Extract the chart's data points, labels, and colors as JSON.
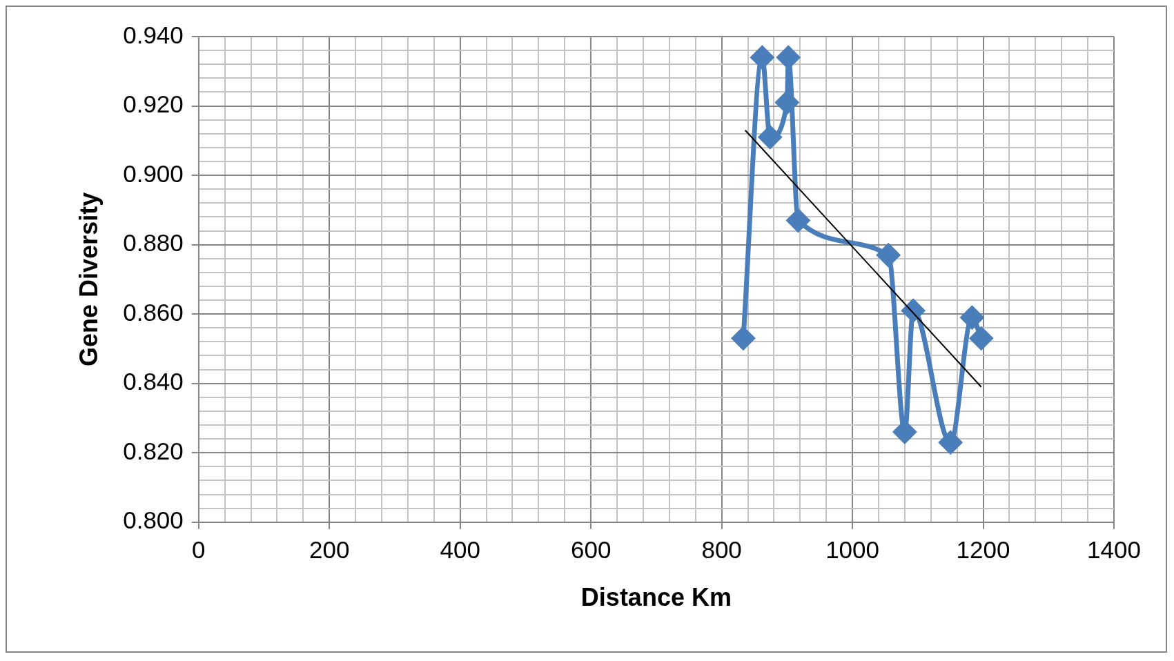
{
  "chart_data": {
    "type": "line",
    "xlabel": "Distance Km",
    "ylabel": "Gene Diversity",
    "xlim": [
      0,
      1400
    ],
    "ylim": [
      0.8,
      0.94
    ],
    "xticks": [
      0,
      {
        "value": 40,
        "label": null
      },
      {
        "value": 80,
        "label": null
      },
      {
        "value": 120,
        "label": null
      },
      {
        "value": 160,
        "label": null
      },
      200,
      {
        "value": 240,
        "label": null
      },
      {
        "value": 280,
        "label": null
      },
      {
        "value": 320,
        "label": null
      },
      {
        "value": 360,
        "label": null
      },
      400,
      {
        "value": 440,
        "label": null
      },
      {
        "value": 480,
        "label": null
      },
      {
        "value": 520,
        "label": null
      },
      {
        "value": 560,
        "label": null
      },
      600,
      {
        "value": 640,
        "label": null
      },
      {
        "value": 680,
        "label": null
      },
      {
        "value": 720,
        "label": null
      },
      {
        "value": 760,
        "label": null
      },
      800,
      {
        "value": 840,
        "label": null
      },
      {
        "value": 880,
        "label": null
      },
      {
        "value": 920,
        "label": null
      },
      {
        "value": 960,
        "label": null
      },
      1000,
      {
        "value": 1040,
        "label": null
      },
      {
        "value": 1080,
        "label": null
      },
      {
        "value": 1120,
        "label": null
      },
      {
        "value": 1160,
        "label": null
      },
      1200,
      {
        "value": 1240,
        "label": null
      },
      {
        "value": 1280,
        "label": null
      },
      {
        "value": 1320,
        "label": null
      },
      {
        "value": 1360,
        "label": null
      },
      1400
    ],
    "yticks": [
      {
        "value": 0.8,
        "label": "0.800"
      },
      {
        "value": 0.804,
        "label": null
      },
      {
        "value": 0.808,
        "label": null
      },
      {
        "value": 0.812,
        "label": null
      },
      {
        "value": 0.816,
        "label": null
      },
      {
        "value": 0.82,
        "label": "0.820"
      },
      {
        "value": 0.824,
        "label": null
      },
      {
        "value": 0.828,
        "label": null
      },
      {
        "value": 0.832,
        "label": null
      },
      {
        "value": 0.836,
        "label": null
      },
      {
        "value": 0.84,
        "label": "0.840"
      },
      {
        "value": 0.844,
        "label": null
      },
      {
        "value": 0.848,
        "label": null
      },
      {
        "value": 0.852,
        "label": null
      },
      {
        "value": 0.856,
        "label": null
      },
      {
        "value": 0.86,
        "label": "0.860"
      },
      {
        "value": 0.864,
        "label": null
      },
      {
        "value": 0.868,
        "label": null
      },
      {
        "value": 0.872,
        "label": null
      },
      {
        "value": 0.876,
        "label": null
      },
      {
        "value": 0.88,
        "label": "0.880"
      },
      {
        "value": 0.884,
        "label": null
      },
      {
        "value": 0.888,
        "label": null
      },
      {
        "value": 0.892,
        "label": null
      },
      {
        "value": 0.896,
        "label": null
      },
      {
        "value": 0.9,
        "label": "0.900"
      },
      {
        "value": 0.904,
        "label": null
      },
      {
        "value": 0.908,
        "label": null
      },
      {
        "value": 0.912,
        "label": null
      },
      {
        "value": 0.916,
        "label": null
      },
      {
        "value": 0.92,
        "label": "0.920"
      },
      {
        "value": 0.924,
        "label": null
      },
      {
        "value": 0.928,
        "label": null
      },
      {
        "value": 0.932,
        "label": null
      },
      {
        "value": 0.936,
        "label": null
      },
      {
        "value": 0.94,
        "label": "0.940"
      }
    ],
    "grid": true,
    "legend": false,
    "series": [
      {
        "type": "line",
        "color": "#4a7ebb",
        "marker": "diamond",
        "x": [
          833,
          862,
          874,
          900,
          902,
          917,
          1055,
          1080,
          1093,
          1150,
          1183,
          1197
        ],
        "values": [
          0.853,
          0.934,
          0.911,
          0.921,
          0.934,
          0.887,
          0.877,
          0.826,
          0.861,
          0.823,
          0.859,
          0.853
        ]
      },
      {
        "type": "line",
        "color": "#000000",
        "marker": "none",
        "x": [
          836,
          1197
        ],
        "values": [
          0.913,
          0.839
        ]
      }
    ]
  }
}
